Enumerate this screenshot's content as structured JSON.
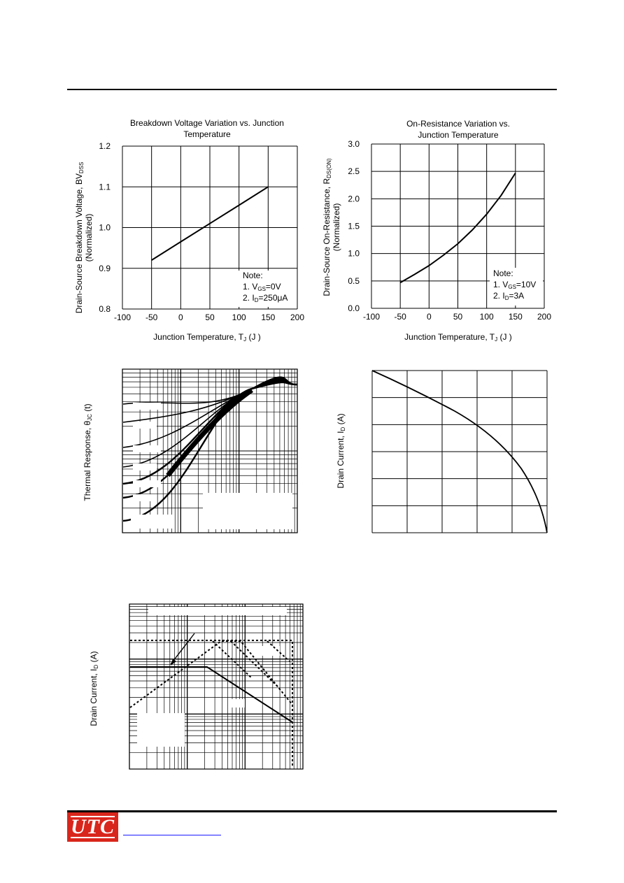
{
  "chart_data": [
    {
      "type": "line",
      "title_line1": "Breakdown Voltage Variation vs. Junction",
      "title_line2": "Temperature",
      "xlabel_main": "Junction Temperature, T",
      "xlabel_sub": "J",
      "xlabel_unit": " (J  )",
      "ylabel_main": "Drain-Source Breakdown Voltage, BV",
      "ylabel_sub": "DSS",
      "ylabel_line2": "(Normalized)",
      "xlim": [
        -100,
        200
      ],
      "ylim": [
        0.8,
        1.2
      ],
      "xticks": [
        "-100",
        "-50",
        "0",
        "50",
        "100",
        "150",
        "200"
      ],
      "yticks": [
        "0.8",
        "0.9",
        "1.0",
        "1.1",
        "1.2"
      ],
      "note_title": "Note:",
      "note_1": "1. V",
      "note_1_sub": "GS",
      "note_1_tail": "=0V",
      "note_2": "2. I",
      "note_2_sub": "D",
      "note_2_tail": "=250μA",
      "series": [
        {
          "x": [
            -50,
            0,
            50,
            100,
            150
          ],
          "y": [
            0.92,
            0.965,
            1.01,
            1.055,
            1.1
          ]
        }
      ]
    },
    {
      "type": "line",
      "title_line1": "On-Resistance Variation vs.",
      "title_line2": "Junction Temperature",
      "xlabel_main": "Junction Temperature, T",
      "xlabel_sub": "J",
      "xlabel_unit": " (J  )",
      "ylabel_main": "Drain-Source On-Resistance, R",
      "ylabel_sub": "DS(ON)",
      "ylabel_line2": "(Normalized)",
      "xlim": [
        -100,
        200
      ],
      "ylim": [
        0,
        3.0
      ],
      "xticks": [
        "-100",
        "-50",
        "0",
        "50",
        "100",
        "150",
        "200"
      ],
      "yticks": [
        "0.0",
        "0.5",
        "1.0",
        "1.5",
        "2.0",
        "2.5",
        "3.0"
      ],
      "note_title": "Note:",
      "note_1": "1. V",
      "note_1_sub": "GS",
      "note_1_tail": "=10V",
      "note_2": "2. I",
      "note_2_sub": "D",
      "note_2_tail": "=3A",
      "series": [
        {
          "x": [
            -50,
            -25,
            0,
            25,
            50,
            75,
            100,
            125,
            150
          ],
          "y": [
            0.47,
            0.62,
            0.78,
            0.97,
            1.18,
            1.43,
            1.72,
            2.06,
            2.47
          ]
        }
      ]
    },
    {
      "type": "line",
      "ylabel_main": "Thermal Response, θ",
      "ylabel_sub": "JC",
      "ylabel_tail": " (t)",
      "scale": "log-log",
      "curve_count": 7
    },
    {
      "type": "line",
      "ylabel_main": "Drain Current, I",
      "ylabel_sub": "D",
      "ylabel_tail": " (A)"
    },
    {
      "type": "line",
      "ylabel_main": "Drain Current, I",
      "ylabel_sub": "D",
      "ylabel_tail": " (A)",
      "scale": "log-log"
    }
  ],
  "footer": {
    "logo_text": "UTC"
  }
}
